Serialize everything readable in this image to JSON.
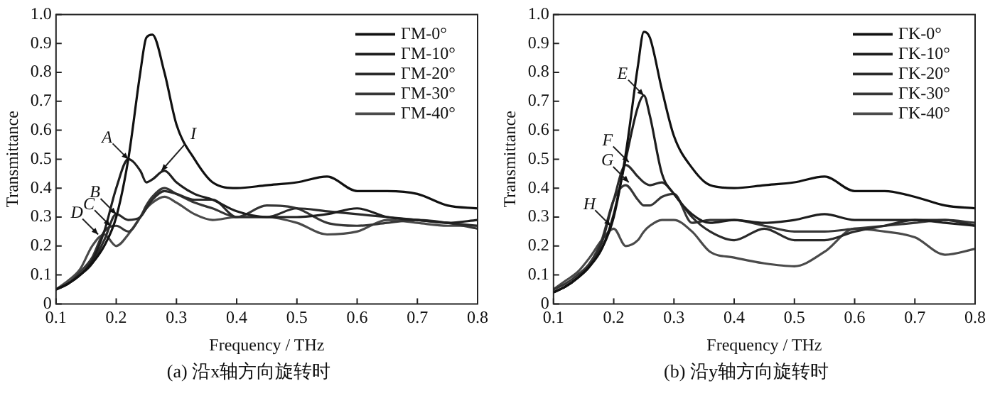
{
  "chart_data": [
    {
      "type": "line",
      "xlabel": "Frequency / THz",
      "ylabel": "Transmittance",
      "xlim": [
        0.1,
        0.8
      ],
      "xticks": [
        0.1,
        0.2,
        0.3,
        0.4,
        0.5,
        0.6,
        0.7,
        0.8
      ],
      "ylim": [
        0,
        1
      ],
      "yticks": [
        0,
        {
          "value": 0.1,
          "label": "0.1"
        },
        {
          "value": 0.2,
          "label": "0.2"
        },
        {
          "value": 0.3,
          "label": "0.3"
        },
        {
          "value": 0.4,
          "label": "0.4"
        },
        {
          "value": 0.5,
          "label": "0.5"
        },
        {
          "value": 0.6,
          "label": "0.6"
        },
        {
          "value": 0.7,
          "label": "0.7"
        },
        {
          "value": 0.8,
          "label": "0.8"
        },
        {
          "value": 0.9,
          "label": "0.9"
        },
        {
          "value": 1,
          "label": "1.0"
        }
      ],
      "grid": false,
      "legend": "top right",
      "marker": "none",
      "line_style": "solid",
      "x": [
        0.1,
        0.12,
        0.14,
        0.16,
        0.18,
        0.2,
        0.22,
        0.24,
        0.25,
        0.26,
        0.28,
        0.3,
        0.33,
        0.36,
        0.4,
        0.45,
        0.5,
        0.55,
        0.6,
        0.65,
        0.7,
        0.75,
        0.8
      ],
      "series": [
        {
          "name": "ΓM-0°",
          "color": "#111111",
          "values": [
            0.05,
            0.07,
            0.1,
            0.14,
            0.2,
            0.3,
            0.5,
            0.8,
            0.92,
            0.93,
            0.8,
            0.62,
            0.5,
            0.42,
            0.4,
            0.41,
            0.42,
            0.44,
            0.39,
            0.39,
            0.38,
            0.34,
            0.33
          ]
        },
        {
          "name": "ΓM-10°",
          "color": "#1e1e1e",
          "values": [
            0.05,
            0.07,
            0.1,
            0.15,
            0.25,
            0.4,
            0.5,
            0.46,
            0.42,
            0.43,
            0.46,
            0.42,
            0.38,
            0.36,
            0.32,
            0.3,
            0.3,
            0.31,
            0.33,
            0.3,
            0.29,
            0.28,
            0.29
          ]
        },
        {
          "name": "ΓM-20°",
          "color": "#2a2a2a",
          "values": [
            0.05,
            0.07,
            0.1,
            0.14,
            0.22,
            0.31,
            0.29,
            0.3,
            0.33,
            0.36,
            0.39,
            0.38,
            0.36,
            0.36,
            0.3,
            0.3,
            0.33,
            0.32,
            0.31,
            0.3,
            0.29,
            0.28,
            0.27
          ]
        },
        {
          "name": "ΓM-30°",
          "color": "#363636",
          "values": [
            0.05,
            0.07,
            0.11,
            0.16,
            0.25,
            0.27,
            0.25,
            0.3,
            0.34,
            0.37,
            0.4,
            0.38,
            0.35,
            0.33,
            0.3,
            0.34,
            0.33,
            0.28,
            0.27,
            0.28,
            0.29,
            0.28,
            0.26
          ]
        },
        {
          "name": "ΓM-40°",
          "color": "#4a4a4a",
          "values": [
            0.05,
            0.08,
            0.12,
            0.2,
            0.24,
            0.2,
            0.24,
            0.3,
            0.33,
            0.35,
            0.37,
            0.35,
            0.31,
            0.29,
            0.3,
            0.3,
            0.28,
            0.24,
            0.25,
            0.29,
            0.28,
            0.27,
            0.27
          ]
        }
      ],
      "annotations": [
        {
          "text": "A",
          "x": 0.22,
          "y": 0.5
        },
        {
          "text": "I",
          "x": 0.275,
          "y": 0.46
        },
        {
          "text": "B",
          "x": 0.2,
          "y": 0.31
        },
        {
          "text": "C",
          "x": 0.19,
          "y": 0.27
        },
        {
          "text": "D",
          "x": 0.17,
          "y": 0.24
        },
        "(a) 沿x轴方向旋转时"
      ]
    },
    {
      "type": "line",
      "xlabel": "Frequency / THz",
      "ylabel": "Transmittance",
      "xlim": [
        0.1,
        0.8
      ],
      "xticks": [
        0.1,
        0.2,
        0.3,
        0.4,
        0.5,
        0.6,
        0.7,
        0.8
      ],
      "ylim": [
        0,
        1
      ],
      "yticks": [
        0,
        {
          "value": 0.1,
          "label": "0.1"
        },
        {
          "value": 0.2,
          "label": "0.2"
        },
        {
          "value": 0.3,
          "label": "0.3"
        },
        {
          "value": 0.4,
          "label": "0.4"
        },
        {
          "value": 0.5,
          "label": "0.5"
        },
        {
          "value": 0.6,
          "label": "0.6"
        },
        {
          "value": 0.7,
          "label": "0.7"
        },
        {
          "value": 0.8,
          "label": "0.8"
        },
        {
          "value": 0.9,
          "label": "0.9"
        },
        {
          "value": 1,
          "label": "1.0"
        }
      ],
      "grid": false,
      "legend": "top right",
      "marker": "none",
      "line_style": "solid",
      "x": [
        0.1,
        0.12,
        0.14,
        0.16,
        0.18,
        0.2,
        0.22,
        0.24,
        0.25,
        0.26,
        0.28,
        0.3,
        0.33,
        0.36,
        0.4,
        0.45,
        0.5,
        0.55,
        0.6,
        0.65,
        0.7,
        0.75,
        0.8
      ],
      "series": [
        {
          "name": "ΓK-0°",
          "color": "#111111",
          "values": [
            0.04,
            0.06,
            0.09,
            0.13,
            0.19,
            0.3,
            0.52,
            0.82,
            0.94,
            0.92,
            0.74,
            0.58,
            0.47,
            0.41,
            0.4,
            0.41,
            0.42,
            0.44,
            0.39,
            0.39,
            0.37,
            0.34,
            0.33
          ]
        },
        {
          "name": "ΓK-10°",
          "color": "#1e1e1e",
          "values": [
            0.04,
            0.06,
            0.09,
            0.13,
            0.19,
            0.31,
            0.5,
            0.68,
            0.72,
            0.65,
            0.45,
            0.38,
            0.31,
            0.28,
            0.29,
            0.28,
            0.29,
            0.31,
            0.29,
            0.29,
            0.29,
            0.28,
            0.27
          ]
        },
        {
          "name": "ΓK-20°",
          "color": "#2a2a2a",
          "values": [
            0.04,
            0.06,
            0.09,
            0.13,
            0.21,
            0.36,
            0.48,
            0.44,
            0.42,
            0.41,
            0.42,
            0.38,
            0.3,
            0.25,
            0.22,
            0.26,
            0.22,
            0.22,
            0.25,
            0.27,
            0.29,
            0.29,
            0.27
          ]
        },
        {
          "name": "ΓK-30°",
          "color": "#363636",
          "values": [
            0.05,
            0.07,
            0.1,
            0.14,
            0.22,
            0.36,
            0.41,
            0.36,
            0.34,
            0.34,
            0.37,
            0.38,
            0.28,
            0.29,
            0.29,
            0.27,
            0.25,
            0.25,
            0.26,
            0.27,
            0.28,
            0.29,
            0.28
          ]
        },
        {
          "name": "ΓK-40°",
          "color": "#4a4a4a",
          "values": [
            0.05,
            0.08,
            0.11,
            0.16,
            0.22,
            0.26,
            0.2,
            0.22,
            0.25,
            0.27,
            0.29,
            0.29,
            0.25,
            0.18,
            0.16,
            0.14,
            0.13,
            0.18,
            0.26,
            0.25,
            0.23,
            0.17,
            0.19
          ]
        }
      ],
      "annotations": [
        {
          "text": "E",
          "x": 0.25,
          "y": 0.72
        },
        {
          "text": "F",
          "x": 0.225,
          "y": 0.49
        },
        {
          "text": "G",
          "x": 0.225,
          "y": 0.42
        },
        {
          "text": "H",
          "x": 0.195,
          "y": 0.27
        },
        "(b) 沿y轴方向旋转时"
      ]
    }
  ]
}
